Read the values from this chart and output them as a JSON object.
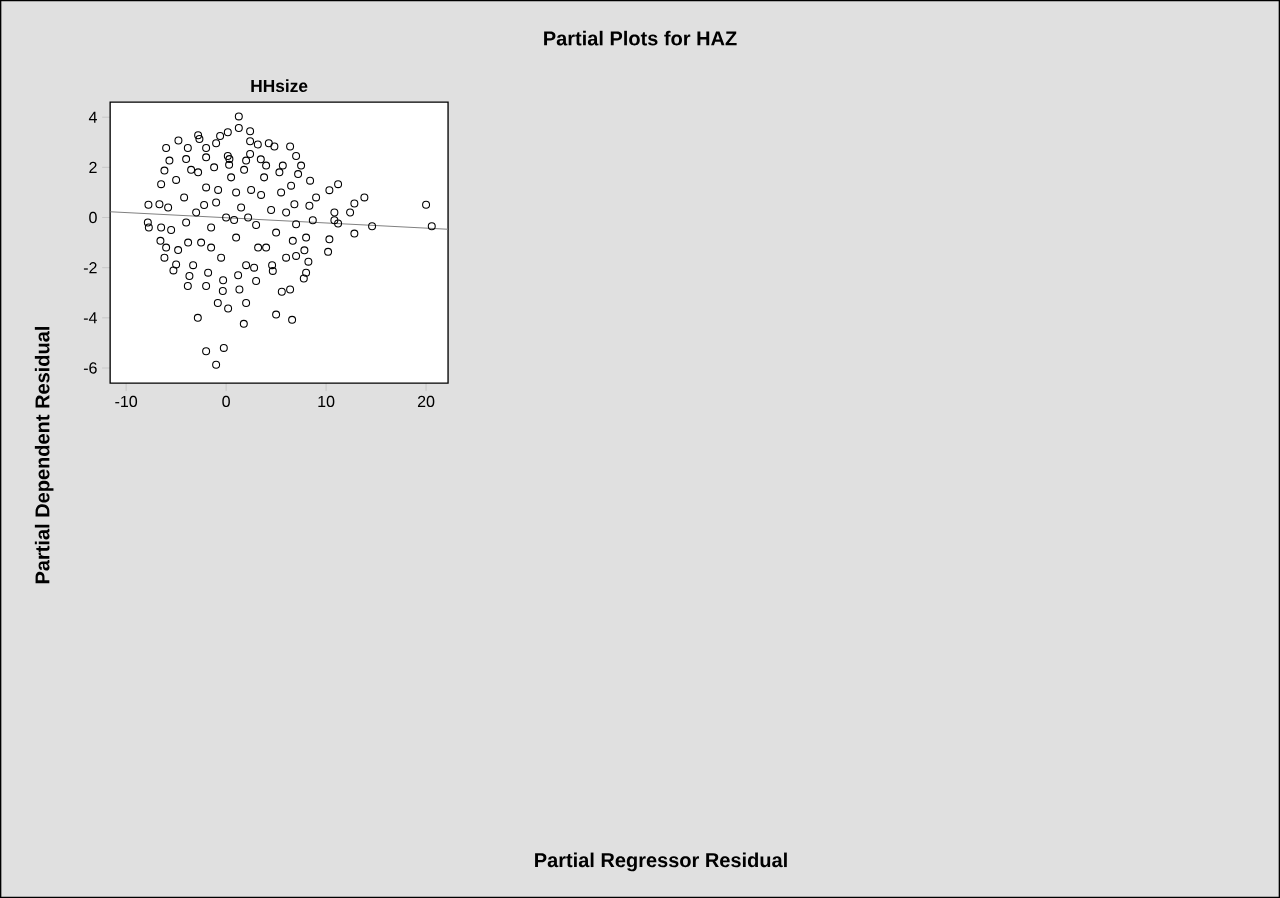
{
  "chart_data": {
    "type": "scatter",
    "title": "Partial Plots for HAZ",
    "subtitle": "HHsize",
    "annotations": [
      "Partial Regressor Residual"
    ],
    "ylabel": "Partial Dependent Residual",
    "xlim": [
      -11.6,
      22.2
    ],
    "ylim": [
      -6.6,
      4.6
    ],
    "xticks": [
      -10,
      0,
      10,
      20
    ],
    "yticks": [
      -6,
      -4,
      -2,
      0,
      2,
      4
    ],
    "grid": false,
    "series": [
      {
        "type": "scatter",
        "marker": "circle",
        "color": "#000000",
        "x": [
          1.27,
          1.27,
          2.4,
          0.17,
          -0.6,
          -2.8,
          -2.67,
          -4.77,
          -1.0,
          -6.0,
          -3.83,
          -2.0,
          2.4,
          3.17,
          4.27,
          4.83,
          6.4,
          7.0,
          2.4,
          3.47,
          0.17,
          5.67,
          7.5,
          7.2,
          8.4,
          11.2,
          10.33,
          9.0,
          13.83,
          12.83,
          12.4,
          10.83,
          20.0,
          20.57,
          14.6,
          12.83,
          11.2,
          10.83,
          10.33,
          10.2,
          8.0,
          7.83,
          8.23,
          8.0,
          7.77,
          6.4,
          5.57,
          6.6,
          5.0,
          1.77,
          2.0,
          0.2,
          -0.83,
          -2.83,
          -2.0,
          -0.23,
          -1.0,
          -3.83,
          -5.27,
          -6.17,
          -7.83,
          -7.73,
          -7.77,
          -6.57,
          7.0,
          8.67,
          8.33,
          -5.67,
          -4.0,
          -2.0,
          0.33,
          2.0,
          4.0,
          5.33,
          6.5,
          6.83,
          7.0,
          6.67,
          6.0,
          4.67,
          3.0,
          1.33,
          -0.33,
          -2.0,
          -3.67,
          -5.0,
          -6.0,
          -6.5,
          -6.67,
          -6.5,
          -6.17,
          -5,
          -4.2,
          -3.5,
          -3,
          -2.5,
          -2,
          -1.5,
          -1,
          -0.5,
          0,
          0.5,
          1,
          1.5,
          2,
          2.5,
          3,
          3.5,
          4,
          4.5,
          5,
          5.5,
          -5.5,
          -4.8,
          -4,
          -3.3,
          -2.8,
          -1.8,
          -1.2,
          -0.3,
          0.3,
          1.2,
          1.8,
          2.8,
          3.8,
          4.6,
          -5.8,
          6,
          -2.2,
          0.8,
          2.2,
          -3.8,
          -0.8,
          1,
          3.2,
          -1.5
        ],
        "values": [
          4.03,
          3.57,
          3.44,
          3.4,
          3.25,
          3.28,
          3.13,
          3.07,
          2.96,
          2.77,
          2.77,
          2.77,
          3.04,
          2.91,
          2.96,
          2.83,
          2.83,
          2.45,
          2.53,
          2.32,
          2.45,
          2.07,
          2.07,
          1.73,
          1.47,
          1.33,
          1.09,
          0.8,
          0.8,
          0.56,
          0.2,
          0.2,
          0.51,
          -0.35,
          -0.35,
          -0.64,
          -0.24,
          -0.11,
          -0.87,
          -1.37,
          -0.8,
          -1.31,
          -1.76,
          -2.2,
          -2.43,
          -2.87,
          -2.96,
          -4.08,
          -3.87,
          -4.24,
          -3.41,
          -3.63,
          -3.41,
          -4.0,
          -5.33,
          -5.2,
          -5.87,
          -2.73,
          -2.11,
          -1.6,
          -0.2,
          -0.4,
          0.51,
          -0.93,
          -1.53,
          -0.11,
          0.47,
          2.27,
          2.33,
          2.4,
          2.33,
          2.27,
          2.07,
          1.8,
          1.27,
          0.53,
          -0.27,
          -0.93,
          -1.6,
          -2.13,
          -2.53,
          -2.87,
          -2.93,
          -2.73,
          -2.33,
          -1.87,
          -1.2,
          -0.4,
          0.53,
          1.33,
          1.87,
          1.5,
          0.8,
          1.9,
          0.2,
          -1,
          1.2,
          -0.4,
          0.6,
          -1.6,
          0,
          1.6,
          -0.8,
          0.4,
          -1.9,
          1.1,
          -0.3,
          0.9,
          -1.2,
          0.3,
          -0.6,
          1.0,
          -0.5,
          -1.3,
          -0.2,
          -1.9,
          1.8,
          -2.2,
          2.0,
          -2.5,
          2.1,
          -2.3,
          1.9,
          -2.0,
          1.6,
          -1.9,
          0.4,
          0.2,
          0.5,
          -0.1,
          0.0,
          -1.0,
          1.1,
          1,
          -1.2,
          -1.2
        ]
      },
      {
        "type": "line",
        "color": "#808080",
        "x": [
          -11.6,
          22.2
        ],
        "values": [
          0.23,
          -0.47
        ]
      }
    ]
  }
}
